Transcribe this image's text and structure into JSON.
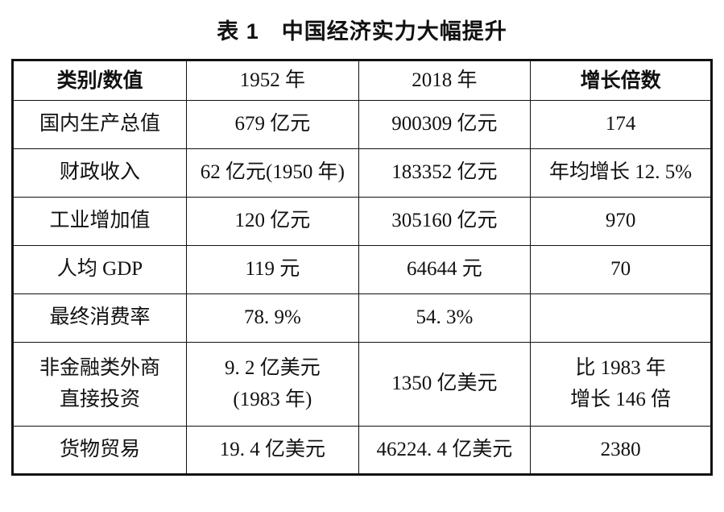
{
  "title": "表 1　中国经济实力大幅提升",
  "table": {
    "headers": {
      "category": "类别/数值",
      "y1952": "1952 年",
      "y2018": "2018 年",
      "growth": "增长倍数"
    },
    "rows": [
      {
        "category": "国内生产总值",
        "y1952": "679 亿元",
        "y2018": "900309 亿元",
        "growth": "174"
      },
      {
        "category": "财政收入",
        "y1952": "62 亿元(1950 年)",
        "y2018": "183352 亿元",
        "growth": "年均增长 12. 5%"
      },
      {
        "category": "工业增加值",
        "y1952": "120 亿元",
        "y2018": "305160 亿元",
        "growth": "970"
      },
      {
        "category": "人均 GDP",
        "y1952": "119 元",
        "y2018": "64644 元",
        "growth": "70"
      },
      {
        "category": "最终消费率",
        "y1952": "78. 9%",
        "y2018": "54. 3%",
        "growth": ""
      },
      {
        "category": "非金融类外商\n直接投资",
        "y1952": "9. 2 亿美元\n(1983 年)",
        "y2018": "1350 亿美元",
        "growth": "比 1983 年\n增长 146 倍"
      },
      {
        "category": "货物贸易",
        "y1952": "19. 4 亿美元",
        "y2018": "46224. 4 亿美元",
        "growth": "2380"
      }
    ]
  }
}
